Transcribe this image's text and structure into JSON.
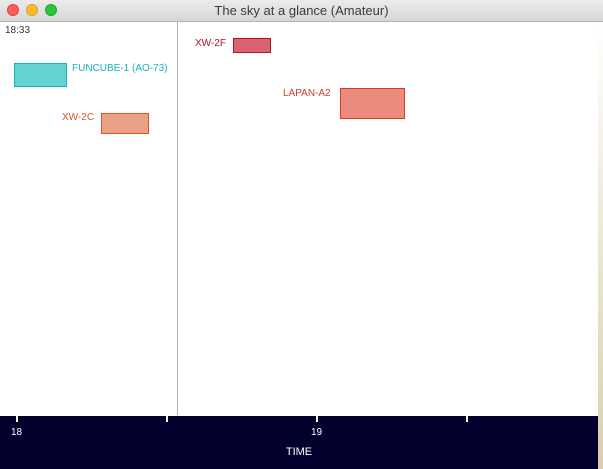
{
  "window": {
    "title": "The sky at a glance (Amateur)"
  },
  "clock": "18:33",
  "passes": [
    {
      "name": "FUNCUBE-1 (AO-73)",
      "color": "#18b3b8",
      "fill": "#63d3d6"
    },
    {
      "name": "XW-2C",
      "color": "#d9572a",
      "fill": "#e9a384"
    },
    {
      "name": "XW-2F",
      "color": "#b0142d",
      "fill": "#d8626f"
    },
    {
      "name": "LAPAN-A2",
      "color": "#d43b2a",
      "fill": "#ea8b7e"
    }
  ],
  "axis": {
    "title": "TIME",
    "tick_labels": [
      "18",
      "19"
    ]
  }
}
